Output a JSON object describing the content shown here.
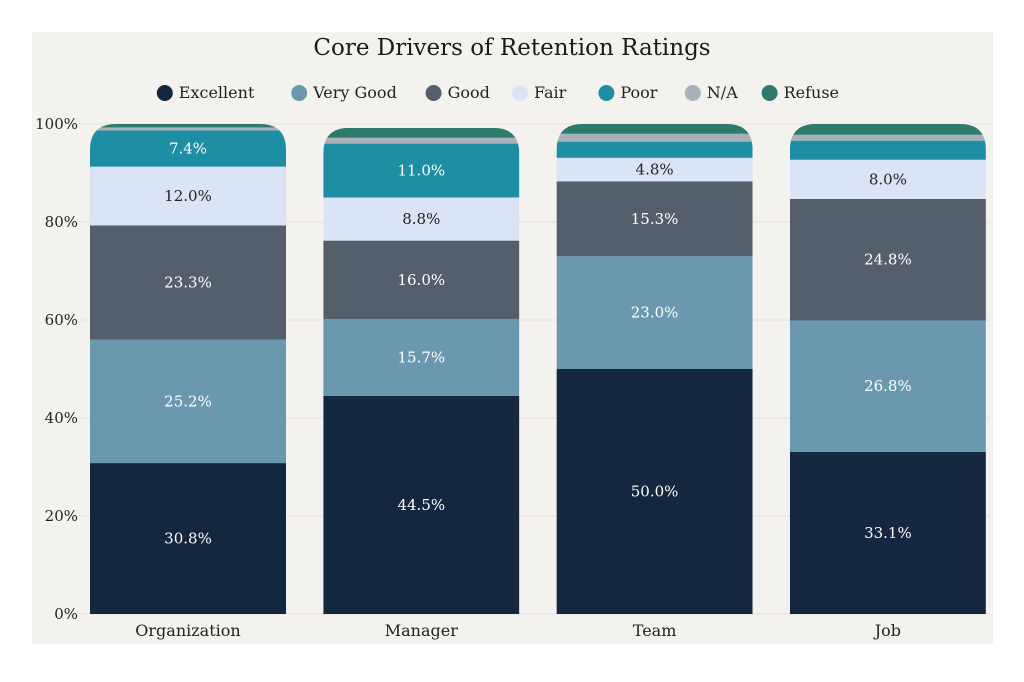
{
  "chart_data": {
    "type": "bar",
    "stacked": true,
    "title": "Core Drivers of Retention Ratings",
    "xlabel": "",
    "ylabel": "",
    "ylim": [
      0,
      100
    ],
    "y_ticks": [
      "0%",
      "20%",
      "40%",
      "60%",
      "80%",
      "100%"
    ],
    "grid": true,
    "legend_position": "top",
    "categories": [
      "Organization",
      "Manager",
      "Team",
      "Job"
    ],
    "series": [
      {
        "name": "Excellent",
        "color": "#13273f",
        "values": [
          30.8,
          44.5,
          50.0,
          33.1
        ],
        "labels": [
          "30.8%",
          "44.5%",
          "50.0%",
          "33.1%"
        ]
      },
      {
        "name": "Very Good",
        "color": "#6a99af",
        "values": [
          25.2,
          15.7,
          23.0,
          26.8
        ],
        "labels": [
          "25.2%",
          "15.7%",
          "23.0%",
          "26.8%"
        ]
      },
      {
        "name": "Good",
        "color": "#555f6b",
        "values": [
          23.3,
          16.0,
          15.3,
          24.8
        ],
        "labels": [
          "23.3%",
          "16.0%",
          "15.3%",
          "24.8%"
        ]
      },
      {
        "name": "Fair",
        "color": "#dbe3f7",
        "values": [
          12.0,
          8.8,
          4.8,
          8.0
        ],
        "labels": [
          "12.0%",
          "8.8%",
          "4.8%",
          "8.0%"
        ]
      },
      {
        "name": "Poor",
        "color": "#1e8ea4",
        "values": [
          7.4,
          11.0,
          3.3,
          3.9
        ],
        "labels": [
          "7.4%",
          "11.0%",
          "",
          ""
        ]
      },
      {
        "name": "N/A",
        "color": "#a8b0ba",
        "values": [
          0.6,
          1.2,
          1.6,
          1.2
        ],
        "labels": [
          "",
          "",
          "",
          ""
        ]
      },
      {
        "name": "Refuse",
        "color": "#2e7b6d",
        "values": [
          0.7,
          2.0,
          2.0,
          2.2
        ],
        "labels": [
          "",
          "",
          "",
          ""
        ]
      }
    ]
  }
}
